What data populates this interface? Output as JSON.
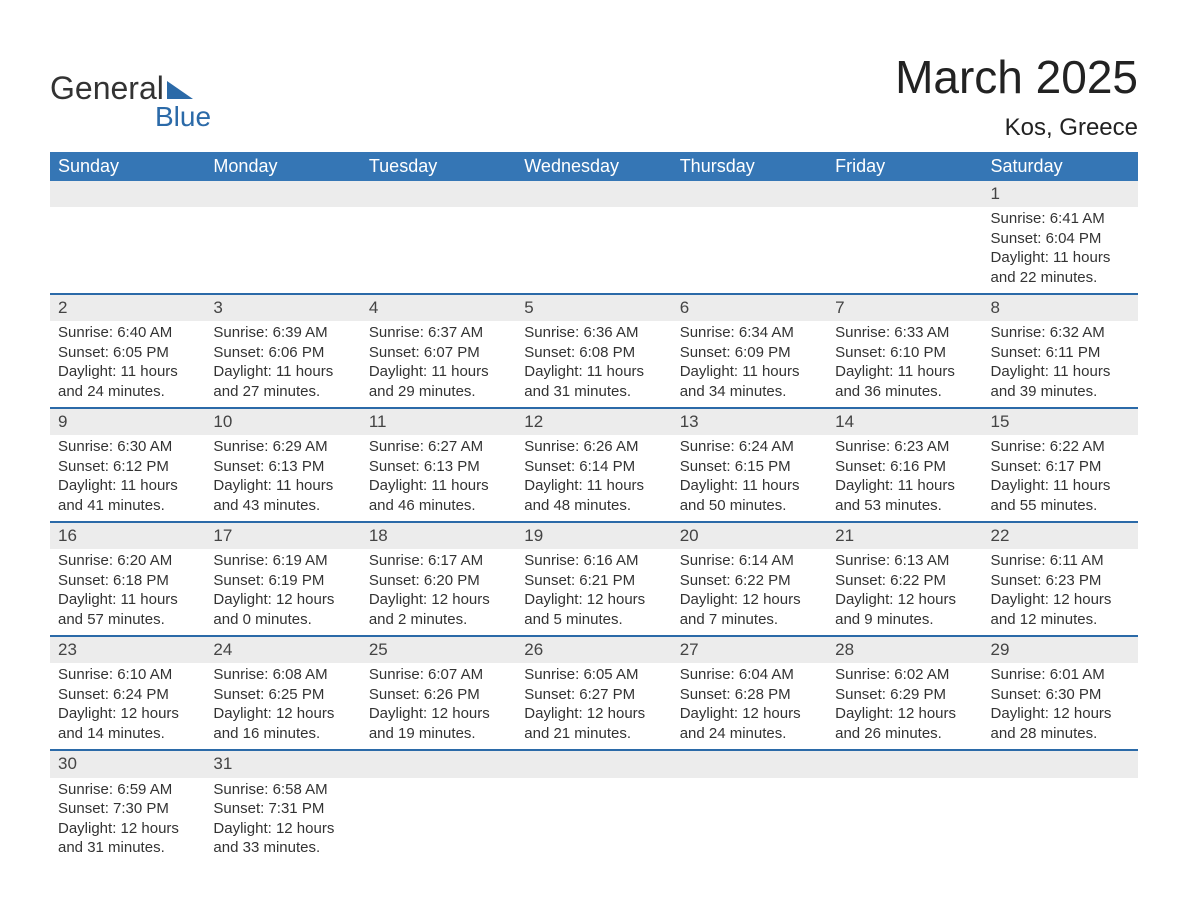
{
  "logo": {
    "text_general": "General",
    "text_blue": "Blue",
    "triangle_color": "#2b6aa8"
  },
  "title": "March 2025",
  "location": "Kos, Greece",
  "colors": {
    "header_bg": "#3576b5",
    "header_text": "#ffffff",
    "daynum_bg": "#ececec",
    "row_border": "#2b6aa8",
    "body_text": "#333333"
  },
  "fonts": {
    "title_size_pt": 34,
    "header_size_pt": 14,
    "cell_size_pt": 11
  },
  "day_headers": [
    "Sunday",
    "Monday",
    "Tuesday",
    "Wednesday",
    "Thursday",
    "Friday",
    "Saturday"
  ],
  "weeks": [
    [
      null,
      null,
      null,
      null,
      null,
      null,
      {
        "n": "1",
        "sr": "Sunrise: 6:41 AM",
        "ss": "Sunset: 6:04 PM",
        "d1": "Daylight: 11 hours",
        "d2": "and 22 minutes."
      }
    ],
    [
      {
        "n": "2",
        "sr": "Sunrise: 6:40 AM",
        "ss": "Sunset: 6:05 PM",
        "d1": "Daylight: 11 hours",
        "d2": "and 24 minutes."
      },
      {
        "n": "3",
        "sr": "Sunrise: 6:39 AM",
        "ss": "Sunset: 6:06 PM",
        "d1": "Daylight: 11 hours",
        "d2": "and 27 minutes."
      },
      {
        "n": "4",
        "sr": "Sunrise: 6:37 AM",
        "ss": "Sunset: 6:07 PM",
        "d1": "Daylight: 11 hours",
        "d2": "and 29 minutes."
      },
      {
        "n": "5",
        "sr": "Sunrise: 6:36 AM",
        "ss": "Sunset: 6:08 PM",
        "d1": "Daylight: 11 hours",
        "d2": "and 31 minutes."
      },
      {
        "n": "6",
        "sr": "Sunrise: 6:34 AM",
        "ss": "Sunset: 6:09 PM",
        "d1": "Daylight: 11 hours",
        "d2": "and 34 minutes."
      },
      {
        "n": "7",
        "sr": "Sunrise: 6:33 AM",
        "ss": "Sunset: 6:10 PM",
        "d1": "Daylight: 11 hours",
        "d2": "and 36 minutes."
      },
      {
        "n": "8",
        "sr": "Sunrise: 6:32 AM",
        "ss": "Sunset: 6:11 PM",
        "d1": "Daylight: 11 hours",
        "d2": "and 39 minutes."
      }
    ],
    [
      {
        "n": "9",
        "sr": "Sunrise: 6:30 AM",
        "ss": "Sunset: 6:12 PM",
        "d1": "Daylight: 11 hours",
        "d2": "and 41 minutes."
      },
      {
        "n": "10",
        "sr": "Sunrise: 6:29 AM",
        "ss": "Sunset: 6:13 PM",
        "d1": "Daylight: 11 hours",
        "d2": "and 43 minutes."
      },
      {
        "n": "11",
        "sr": "Sunrise: 6:27 AM",
        "ss": "Sunset: 6:13 PM",
        "d1": "Daylight: 11 hours",
        "d2": "and 46 minutes."
      },
      {
        "n": "12",
        "sr": "Sunrise: 6:26 AM",
        "ss": "Sunset: 6:14 PM",
        "d1": "Daylight: 11 hours",
        "d2": "and 48 minutes."
      },
      {
        "n": "13",
        "sr": "Sunrise: 6:24 AM",
        "ss": "Sunset: 6:15 PM",
        "d1": "Daylight: 11 hours",
        "d2": "and 50 minutes."
      },
      {
        "n": "14",
        "sr": "Sunrise: 6:23 AM",
        "ss": "Sunset: 6:16 PM",
        "d1": "Daylight: 11 hours",
        "d2": "and 53 minutes."
      },
      {
        "n": "15",
        "sr": "Sunrise: 6:22 AM",
        "ss": "Sunset: 6:17 PM",
        "d1": "Daylight: 11 hours",
        "d2": "and 55 minutes."
      }
    ],
    [
      {
        "n": "16",
        "sr": "Sunrise: 6:20 AM",
        "ss": "Sunset: 6:18 PM",
        "d1": "Daylight: 11 hours",
        "d2": "and 57 minutes."
      },
      {
        "n": "17",
        "sr": "Sunrise: 6:19 AM",
        "ss": "Sunset: 6:19 PM",
        "d1": "Daylight: 12 hours",
        "d2": "and 0 minutes."
      },
      {
        "n": "18",
        "sr": "Sunrise: 6:17 AM",
        "ss": "Sunset: 6:20 PM",
        "d1": "Daylight: 12 hours",
        "d2": "and 2 minutes."
      },
      {
        "n": "19",
        "sr": "Sunrise: 6:16 AM",
        "ss": "Sunset: 6:21 PM",
        "d1": "Daylight: 12 hours",
        "d2": "and 5 minutes."
      },
      {
        "n": "20",
        "sr": "Sunrise: 6:14 AM",
        "ss": "Sunset: 6:22 PM",
        "d1": "Daylight: 12 hours",
        "d2": "and 7 minutes."
      },
      {
        "n": "21",
        "sr": "Sunrise: 6:13 AM",
        "ss": "Sunset: 6:22 PM",
        "d1": "Daylight: 12 hours",
        "d2": "and 9 minutes."
      },
      {
        "n": "22",
        "sr": "Sunrise: 6:11 AM",
        "ss": "Sunset: 6:23 PM",
        "d1": "Daylight: 12 hours",
        "d2": "and 12 minutes."
      }
    ],
    [
      {
        "n": "23",
        "sr": "Sunrise: 6:10 AM",
        "ss": "Sunset: 6:24 PM",
        "d1": "Daylight: 12 hours",
        "d2": "and 14 minutes."
      },
      {
        "n": "24",
        "sr": "Sunrise: 6:08 AM",
        "ss": "Sunset: 6:25 PM",
        "d1": "Daylight: 12 hours",
        "d2": "and 16 minutes."
      },
      {
        "n": "25",
        "sr": "Sunrise: 6:07 AM",
        "ss": "Sunset: 6:26 PM",
        "d1": "Daylight: 12 hours",
        "d2": "and 19 minutes."
      },
      {
        "n": "26",
        "sr": "Sunrise: 6:05 AM",
        "ss": "Sunset: 6:27 PM",
        "d1": "Daylight: 12 hours",
        "d2": "and 21 minutes."
      },
      {
        "n": "27",
        "sr": "Sunrise: 6:04 AM",
        "ss": "Sunset: 6:28 PM",
        "d1": "Daylight: 12 hours",
        "d2": "and 24 minutes."
      },
      {
        "n": "28",
        "sr": "Sunrise: 6:02 AM",
        "ss": "Sunset: 6:29 PM",
        "d1": "Daylight: 12 hours",
        "d2": "and 26 minutes."
      },
      {
        "n": "29",
        "sr": "Sunrise: 6:01 AM",
        "ss": "Sunset: 6:30 PM",
        "d1": "Daylight: 12 hours",
        "d2": "and 28 minutes."
      }
    ],
    [
      {
        "n": "30",
        "sr": "Sunrise: 6:59 AM",
        "ss": "Sunset: 7:30 PM",
        "d1": "Daylight: 12 hours",
        "d2": "and 31 minutes."
      },
      {
        "n": "31",
        "sr": "Sunrise: 6:58 AM",
        "ss": "Sunset: 7:31 PM",
        "d1": "Daylight: 12 hours",
        "d2": "and 33 minutes."
      },
      null,
      null,
      null,
      null,
      null
    ]
  ]
}
